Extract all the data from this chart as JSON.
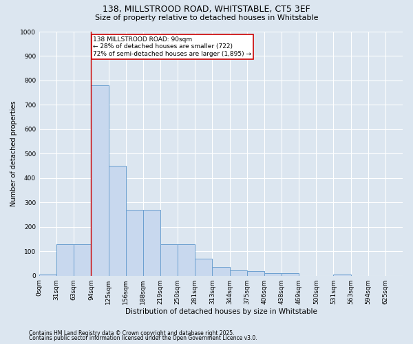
{
  "title_line1": "138, MILLSTROOD ROAD, WHITSTABLE, CT5 3EF",
  "title_line2": "Size of property relative to detached houses in Whitstable",
  "xlabel": "Distribution of detached houses by size in Whitstable",
  "ylabel": "Number of detached properties",
  "bar_color": "#c8d8ee",
  "bar_edge_color": "#6ca0d0",
  "fig_bg_color": "#dce6f0",
  "axes_bg_color": "#dce6f0",
  "categories": [
    "0sqm",
    "31sqm",
    "63sqm",
    "94sqm",
    "125sqm",
    "156sqm",
    "188sqm",
    "219sqm",
    "250sqm",
    "281sqm",
    "313sqm",
    "344sqm",
    "375sqm",
    "406sqm",
    "438sqm",
    "469sqm",
    "500sqm",
    "531sqm",
    "563sqm",
    "594sqm",
    "625sqm"
  ],
  "bar_values": [
    5,
    130,
    130,
    780,
    450,
    270,
    270,
    130,
    130,
    70,
    35,
    22,
    20,
    10,
    10,
    0,
    0,
    5,
    0,
    0,
    0
  ],
  "ylim": [
    0,
    1000
  ],
  "yticks": [
    0,
    100,
    200,
    300,
    400,
    500,
    600,
    700,
    800,
    900,
    1000
  ],
  "property_line_x": 3,
  "annotation_line1": "138 MILLSTROOD ROAD: 90sqm",
  "annotation_line2": "← 28% of detached houses are smaller (722)",
  "annotation_line3": "72% of semi-detached houses are larger (1,895) →",
  "annotation_border_color": "#cc0000",
  "annotation_bg_color": "#ffffff",
  "footnote1": "Contains HM Land Registry data © Crown copyright and database right 2025.",
  "footnote2": "Contains public sector information licensed under the Open Government Licence v3.0.",
  "title_fontsize": 9,
  "subtitle_fontsize": 8,
  "axis_label_fontsize": 7,
  "tick_fontsize": 6.5,
  "annotation_fontsize": 6.5,
  "footnote_fontsize": 5.5
}
